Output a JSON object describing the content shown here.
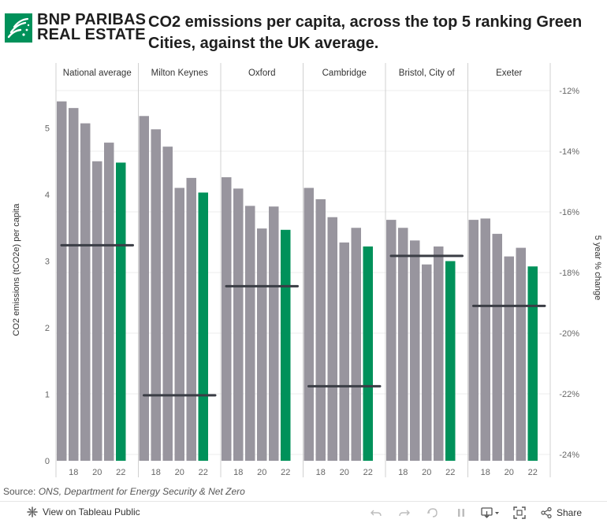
{
  "header": {
    "logo_line1": "BNP PARIBAS",
    "logo_line2": "REAL ESTATE",
    "title": "CO2 emissions per capita, across the top 5 ranking Green Cities, against the UK average."
  },
  "source": {
    "label": "Source:",
    "text": "ONS, Department for Energy Security & Net Zero"
  },
  "toolbar": {
    "view_label": "View on Tableau Public",
    "share_label": "Share"
  },
  "colors": {
    "history_bar": "#98959e",
    "latest_bar": "#00915a",
    "change_line": "#3a3d45",
    "grid": "#ececec",
    "divider": "#d0d0d0"
  },
  "chart_data": {
    "type": "bar",
    "left_axis": {
      "label": "CO2 emissions (tCO2e) per capita",
      "range": [
        0,
        5.5
      ],
      "ticks": [
        0,
        1,
        2,
        3,
        4,
        5
      ]
    },
    "right_axis": {
      "label": "5 year % change",
      "range": [
        -24,
        -12
      ],
      "ticks": [
        -12,
        -14,
        -16,
        -18,
        -20,
        -22,
        -24
      ],
      "tick_labels": [
        "-12%",
        "-14%",
        "-16%",
        "-18%",
        "-20%",
        "-22%",
        "-24%"
      ]
    },
    "years": [
      17,
      18,
      19,
      20,
      21,
      22
    ],
    "x_tick_labels": [
      "18",
      "20",
      "22"
    ],
    "panels": [
      {
        "name": "National average",
        "values": [
          5.4,
          5.3,
          5.07,
          4.5,
          4.78,
          4.48
        ],
        "five_year_change": -17.1
      },
      {
        "name": "Milton Keynes",
        "values": [
          5.18,
          4.98,
          4.72,
          4.1,
          4.25,
          4.03
        ],
        "five_year_change": -22.05
      },
      {
        "name": "Oxford",
        "values": [
          4.26,
          4.09,
          3.83,
          3.49,
          3.82,
          3.47
        ],
        "five_year_change": -18.45
      },
      {
        "name": "Cambridge",
        "values": [
          4.1,
          3.93,
          3.66,
          3.28,
          3.5,
          3.22
        ],
        "five_year_change": -21.75
      },
      {
        "name": "Bristol, City of",
        "values": [
          3.62,
          3.5,
          3.31,
          2.95,
          3.22,
          3.0
        ],
        "five_year_change": -17.45
      },
      {
        "name": "Exeter",
        "values": [
          3.62,
          3.64,
          3.41,
          3.07,
          3.2,
          2.92
        ],
        "five_year_change": -19.1
      }
    ]
  }
}
